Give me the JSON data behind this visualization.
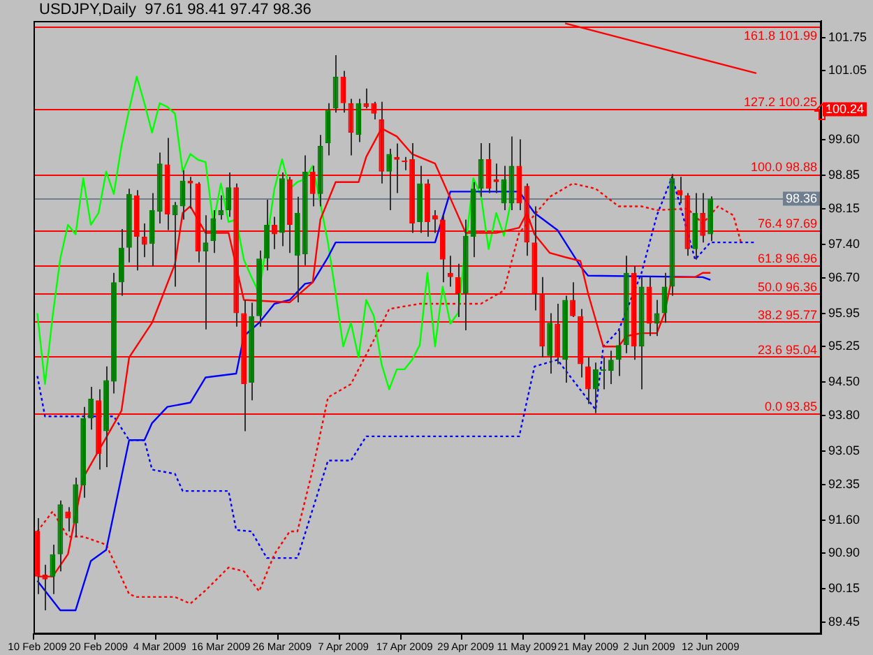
{
  "chart_data": {
    "type": "candlestick",
    "title": "USDJPY,Daily  97.61 98.41 97.47 98.36",
    "categories": [
      "10 Feb 2009",
      null,
      null,
      null,
      null,
      null,
      null,
      null,
      "20 Feb 2009",
      null,
      null,
      null,
      null,
      null,
      null,
      null,
      "4 Mar 2009",
      null,
      null,
      null,
      null,
      null,
      null,
      null,
      "16 Mar 2009",
      null,
      null,
      null,
      null,
      null,
      null,
      null,
      "26 Mar 2009",
      null,
      null,
      null,
      null,
      null,
      null,
      null,
      "7 Apr 2009",
      null,
      null,
      null,
      null,
      null,
      null,
      null,
      "17 Apr 2009",
      null,
      null,
      null,
      null,
      null,
      null,
      null,
      "29 Apr 2009",
      null,
      null,
      null,
      null,
      null,
      null,
      null,
      "11 May 2009",
      null,
      null,
      null,
      null,
      null,
      null,
      null,
      "21 May 2009",
      null,
      null,
      null,
      null,
      null,
      null,
      null,
      "2 Jun 2009",
      null,
      null,
      null,
      null,
      null,
      null,
      null,
      "12 Jun 2009",
      null,
      null,
      null,
      null,
      null,
      null,
      null,
      null,
      null,
      null,
      null,
      null,
      null,
      null
    ],
    "ohlc": [
      [
        91.37,
        91.64,
        90.04,
        90.41
      ],
      [
        90.45,
        90.66,
        89.7,
        90.35
      ],
      [
        90.41,
        91.08,
        90.04,
        90.88
      ],
      [
        90.88,
        92.01,
        90.52,
        91.93
      ],
      [
        91.78,
        91.87,
        91.36,
        91.63
      ],
      [
        91.53,
        92.49,
        91.25,
        92.35
      ],
      [
        92.33,
        93.98,
        92.07,
        93.74
      ],
      [
        93.74,
        94.4,
        93.5,
        94.15
      ],
      [
        94.12,
        94.35,
        92.66,
        92.99
      ],
      [
        93.47,
        94.83,
        92.71,
        94.54
      ],
      [
        94.51,
        96.8,
        94.26,
        96.6
      ],
      [
        96.6,
        97.72,
        96.32,
        97.33
      ],
      [
        97.33,
        98.57,
        97.02,
        98.46
      ],
      [
        98.43,
        98.54,
        96.85,
        97.56
      ],
      [
        97.56,
        97.84,
        97.13,
        97.39
      ],
      [
        97.41,
        98.48,
        96.94,
        98.12
      ],
      [
        98.09,
        99.33,
        97.84,
        99.1
      ],
      [
        99.08,
        99.64,
        97.7,
        98.03
      ],
      [
        98.01,
        98.29,
        96.51,
        98.23
      ],
      [
        98.2,
        98.96,
        97.92,
        98.74
      ],
      [
        98.74,
        98.82,
        98.15,
        98.68
      ],
      [
        98.68,
        98.71,
        97.02,
        97.25
      ],
      [
        97.25,
        98.01,
        95.61,
        97.44
      ],
      [
        97.47,
        98.12,
        97.22,
        97.95
      ],
      [
        98.01,
        98.43,
        97.92,
        98.12
      ],
      [
        98.12,
        98.91,
        97.98,
        98.6
      ],
      [
        98.6,
        98.68,
        95.67,
        95.95
      ],
      [
        95.95,
        96.23,
        93.47,
        94.46
      ],
      [
        94.49,
        96.17,
        94.12,
        95.89
      ],
      [
        95.89,
        97.27,
        95.67,
        97.1
      ],
      [
        97.1,
        98.34,
        96.85,
        97.81
      ],
      [
        97.81,
        97.98,
        97.3,
        97.61
      ],
      [
        97.64,
        98.91,
        97.36,
        98.79
      ],
      [
        98.77,
        98.82,
        97.22,
        97.81
      ],
      [
        97.16,
        98.4,
        96.18,
        98.06
      ],
      [
        97.19,
        99.27,
        96.96,
        98.93
      ],
      [
        98.93,
        99.05,
        98.2,
        98.46
      ],
      [
        98.46,
        99.7,
        98.2,
        99.47
      ],
      [
        99.53,
        100.37,
        99.27,
        100.23
      ],
      [
        100.26,
        101.38,
        100.17,
        100.93
      ],
      [
        100.93,
        101.05,
        100.17,
        100.37
      ],
      [
        100.37,
        100.46,
        99.27,
        99.75
      ],
      [
        99.7,
        100.46,
        99.55,
        100.37
      ],
      [
        100.37,
        100.68,
        100.26,
        100.29
      ],
      [
        100.37,
        100.4,
        100.03,
        100.15
      ],
      [
        100.03,
        100.4,
        98.68,
        98.93
      ],
      [
        98.93,
        99.41,
        98.12,
        99.3
      ],
      [
        99.24,
        99.52,
        98.48,
        99.18
      ],
      [
        99.16,
        99.24,
        98.96,
        99.13
      ],
      [
        99.19,
        99.53,
        97.64,
        97.84
      ],
      [
        97.87,
        99.05,
        97.64,
        98.68
      ],
      [
        98.68,
        98.77,
        97.56,
        97.87
      ],
      [
        98.01,
        98.12,
        97.64,
        97.92
      ],
      [
        97.92,
        98.01,
        96.6,
        97.08
      ],
      [
        96.8,
        97.16,
        96.51,
        96.71
      ],
      [
        96.71,
        96.99,
        95.87,
        96.37
      ],
      [
        96.37,
        97.92,
        95.59,
        97.58
      ],
      [
        97.56,
        98.71,
        97.13,
        98.57
      ],
      [
        98.57,
        99.53,
        98.4,
        99.19
      ],
      [
        99.19,
        99.53,
        98.48,
        98.57
      ],
      [
        98.77,
        99.1,
        98.48,
        98.71
      ],
      [
        98.26,
        99.05,
        98.12,
        98.77
      ],
      [
        98.26,
        99.67,
        98.12,
        99.05
      ],
      [
        99.05,
        99.61,
        98.12,
        98.26
      ],
      [
        98.63,
        98.68,
        97.16,
        97.44
      ],
      [
        97.44,
        98.2,
        96.01,
        96.37
      ],
      [
        96.37,
        96.71,
        95.02,
        95.25
      ],
      [
        95.05,
        95.95,
        94.68,
        95.75
      ],
      [
        95.73,
        96.15,
        94.88,
        95.02
      ],
      [
        94.97,
        96.32,
        94.49,
        96.23
      ],
      [
        96.23,
        96.6,
        95.87,
        95.89
      ],
      [
        95.89,
        96.04,
        94.6,
        94.88
      ],
      [
        94.83,
        95.02,
        94.04,
        94.35
      ],
      [
        94.35,
        94.91,
        93.85,
        94.77
      ],
      [
        94.74,
        95.02,
        94.35,
        94.77
      ],
      [
        94.74,
        95.16,
        94.46,
        94.97
      ],
      [
        94.97,
        95.59,
        94.63,
        95.28
      ],
      [
        95.28,
        97.16,
        95.11,
        96.8
      ],
      [
        96.8,
        96.94,
        94.97,
        95.25
      ],
      [
        95.25,
        96.71,
        94.35,
        96.51
      ],
      [
        96.51,
        96.71,
        95.47,
        95.73
      ],
      [
        95.73,
        96.23,
        95.47,
        95.95
      ],
      [
        95.95,
        96.8,
        95.75,
        96.51
      ],
      [
        96.51,
        98.88,
        96.32,
        98.79
      ],
      [
        98.54,
        98.82,
        98.26,
        98.43
      ],
      [
        98.43,
        98.48,
        97.16,
        97.3
      ],
      [
        97.3,
        98.48,
        97.08,
        98.06
      ],
      [
        98.06,
        98.48,
        97.44,
        97.58
      ],
      [
        97.61,
        98.41,
        97.47,
        98.36
      ],
      null,
      null,
      null,
      null,
      null,
      null,
      null,
      null,
      null,
      null,
      null,
      null,
      null,
      null
    ],
    "colors": [
      "#ff0000",
      "#ff0000",
      "#008000",
      "#008000",
      "#ff0000",
      "#008000",
      "#008000",
      "#008000",
      "#ff0000",
      "#008000",
      "#008000",
      "#008000",
      "#008000",
      "#ff0000",
      "#ff0000",
      "#008000",
      "#008000",
      "#ff0000",
      "#008000",
      "#008000",
      "#ff0000",
      "#ff0000",
      "#008000",
      "#008000",
      "#008000",
      "#008000",
      "#ff0000",
      "#ff0000",
      "#008000",
      "#008000",
      "#008000",
      "#ff0000",
      "#008000",
      "#ff0000",
      "#008000",
      "#008000",
      "#ff0000",
      "#008000",
      "#008000",
      "#008000",
      "#ff0000",
      "#ff0000",
      "#008000",
      "#ff0000",
      "#ff0000",
      "#ff0000",
      "#008000",
      "#ff0000",
      "#ff0000",
      "#ff0000",
      "#008000",
      "#ff0000",
      "#ff0000",
      "#ff0000",
      "#ff0000",
      "#ff0000",
      "#008000",
      "#008000",
      "#008000",
      "#ff0000",
      "#ff0000",
      "#008000",
      "#008000",
      "#ff0000",
      "#ff0000",
      "#ff0000",
      "#ff0000",
      "#008000",
      "#ff0000",
      "#008000",
      "#ff0000",
      "#ff0000",
      "#ff0000",
      "#008000",
      "#008000",
      "#008000",
      "#008000",
      "#008000",
      "#ff0000",
      "#008000",
      "#ff0000",
      "#008000",
      "#008000",
      "#008000",
      "#ff0000",
      "#ff0000",
      "#008000",
      "#ff0000",
      "#008000",
      null,
      null,
      null,
      null,
      null,
      null,
      null,
      null,
      null,
      null,
      null,
      null,
      null,
      null
    ],
    "series": [
      {
        "type": "line",
        "color": "#ff0000",
        "line_style": "solid",
        "values": [
          90.41,
          null,
          90.41,
          null,
          90.88,
          null,
          92.49,
          null,
          null,
          null,
          null,
          93.9,
          95.02,
          null,
          null,
          95.75,
          null,
          null,
          96.99,
          98.06,
          98.2,
          null,
          97.64,
          null,
          null,
          97.64,
          null,
          96.23,
          null,
          null,
          null,
          null,
          null,
          96.18,
          null,
          null,
          96.6,
          97.92,
          null,
          98.71,
          null,
          null,
          98.71,
          99.24,
          null,
          99.84,
          null,
          99.67,
          null,
          99.3,
          null,
          null,
          99.1,
          null,
          98.37,
          null,
          97.64,
          null,
          null,
          null,
          97.64,
          null,
          null,
          97.75,
          98.06,
          97.61,
          null,
          97.22,
          null,
          97.13,
          null,
          97.05,
          96.37,
          null,
          95.25,
          null,
          95.25,
          95.47,
          null,
          95.53,
          null,
          95.53,
          95.95,
          96.71,
          null,
          null,
          96.71,
          96.8,
          96.8,
          null,
          null,
          null,
          null,
          null,
          null,
          null,
          null,
          null,
          null,
          null,
          null,
          null,
          null
        ]
      },
      {
        "type": "line",
        "color": "#0000ff",
        "line_style": "solid",
        "values": [
          90.32,
          null,
          null,
          89.7,
          null,
          89.7,
          null,
          90.74,
          null,
          90.97,
          null,
          null,
          93.28,
          null,
          93.28,
          93.64,
          null,
          93.98,
          null,
          null,
          94.07,
          null,
          94.6,
          null,
          null,
          null,
          94.68,
          95.47,
          null,
          95.75,
          null,
          96.15,
          null,
          96.23,
          null,
          96.57,
          96.6,
          null,
          97.13,
          97.44,
          null,
          null,
          null,
          null,
          null,
          null,
          null,
          null,
          null,
          null,
          null,
          null,
          97.44,
          null,
          98.51,
          null,
          null,
          null,
          null,
          null,
          null,
          null,
          null,
          98.51,
          null,
          98.06,
          null,
          null,
          97.7,
          null,
          null,
          96.94,
          96.74,
          null,
          null,
          null,
          null,
          null,
          null,
          null,
          null,
          null,
          null,
          null,
          null,
          null,
          null,
          96.71,
          96.65,
          null,
          null,
          null,
          null,
          null,
          null,
          null,
          null,
          null,
          null,
          null,
          null,
          null,
          null
        ]
      },
      {
        "type": "line",
        "color": "#00ff00",
        "line_style": "solid",
        "values": [
          95.95,
          94.46,
          95.89,
          97.1,
          97.81,
          97.61,
          98.79,
          97.81,
          98.06,
          98.93,
          98.46,
          99.47,
          100.23,
          100.93,
          100.37,
          99.75,
          100.37,
          100.29,
          100.15,
          98.93,
          99.3,
          99.18,
          99.13,
          97.84,
          98.68,
          97.87,
          97.92,
          97.08,
          96.71,
          96.37,
          null,
          98.57,
          99.19,
          98.57,
          98.71,
          98.77,
          99.05,
          98.26,
          97.44,
          96.37,
          95.25,
          95.75,
          95.02,
          96.23,
          95.89,
          94.88,
          94.35,
          94.77,
          94.77,
          94.97,
          95.28,
          96.8,
          95.25,
          96.51,
          95.73,
          95.95,
          null,
          98.79,
          98.43,
          97.3,
          98.06,
          97.58,
          98.36,
          null,
          null,
          null,
          null,
          null,
          null,
          null,
          null,
          null,
          null,
          null,
          null,
          null,
          null,
          null,
          null,
          null,
          null,
          null,
          null,
          null,
          null,
          null,
          null,
          null,
          null,
          null,
          null,
          null,
          null,
          null,
          null,
          null,
          null,
          null,
          null,
          null,
          null,
          null,
          null
        ]
      },
      {
        "type": "line",
        "color": "#ff0000",
        "line_style": "dotted",
        "values": [
          91.36,
          null,
          91.78,
          null,
          91.25,
          null,
          91.25,
          null,
          null,
          91.08,
          null,
          null,
          90.04,
          89.98,
          null,
          null,
          null,
          null,
          89.98,
          null,
          89.84,
          null,
          90.12,
          null,
          null,
          90.6,
          null,
          90.52,
          null,
          90.1,
          null,
          90.88,
          null,
          91.36,
          91.36,
          null,
          92.66,
          null,
          94.18,
          null,
          null,
          94.46,
          null,
          null,
          95.39,
          null,
          96.04,
          null,
          null,
          null,
          96.15,
          null,
          null,
          null,
          null,
          null,
          null,
          null,
          96.15,
          null,
          null,
          96.43,
          null,
          97.64,
          null,
          null,
          null,
          98.4,
          null,
          null,
          98.68,
          null,
          null,
          98.57,
          null,
          null,
          98.2,
          null,
          null,
          98.2,
          null,
          98.12,
          null,
          null,
          null,
          98.15,
          null,
          97.84,
          null,
          98.2,
          null,
          98.01,
          97.44,
          null,
          null,
          null,
          null,
          null,
          null,
          null,
          null,
          null,
          null
        ]
      },
      {
        "type": "line",
        "color": "#0000ff",
        "line_style": "dotted",
        "values": [
          94.63,
          93.78,
          null,
          null,
          null,
          null,
          null,
          null,
          null,
          null,
          93.78,
          null,
          93.28,
          null,
          93.28,
          92.66,
          null,
          null,
          92.57,
          92.21,
          null,
          null,
          null,
          null,
          null,
          92.21,
          91.39,
          null,
          91.36,
          null,
          90.8,
          null,
          null,
          null,
          90.8,
          null,
          null,
          null,
          92.85,
          null,
          null,
          92.85,
          null,
          93.36,
          null,
          null,
          null,
          null,
          null,
          null,
          null,
          null,
          null,
          null,
          null,
          null,
          null,
          null,
          null,
          null,
          null,
          null,
          null,
          93.36,
          null,
          94.83,
          null,
          null,
          94.97,
          null,
          null,
          null,
          null,
          93.92,
          95.25,
          null,
          95.59,
          null,
          null,
          96.8,
          null,
          98.01,
          null,
          98.82,
          null,
          null,
          97.08,
          null,
          97.44,
          null,
          null,
          null,
          null,
          null,
          97.44,
          null,
          null,
          null,
          null,
          null,
          null,
          null,
          null
        ]
      },
      {
        "type": "line",
        "color": "#ff0000",
        "line_style": "solid",
        "values": [
          null,
          null,
          null,
          null,
          null,
          null,
          null,
          null,
          null,
          null,
          null,
          null,
          null,
          null,
          null,
          null,
          null,
          null,
          null,
          null,
          null,
          null,
          null,
          null,
          null,
          null,
          null,
          null,
          null,
          null,
          null,
          null,
          null,
          null,
          null,
          null,
          null,
          null,
          null,
          null,
          null,
          null,
          null,
          null,
          null,
          null,
          null,
          null,
          null,
          null,
          null,
          null,
          null,
          null,
          null,
          null,
          null,
          null,
          null,
          null,
          null,
          null,
          null,
          null,
          null,
          null,
          null,
          null,
          null,
          102.05,
          null,
          null,
          null,
          null,
          null,
          null,
          null,
          null,
          null,
          null,
          null,
          null,
          null,
          null,
          null,
          null,
          null,
          null,
          null,
          null,
          null,
          null,
          null,
          null,
          101.0,
          null,
          null,
          null,
          null,
          null,
          null,
          null,
          null
        ]
      }
    ],
    "ylim": [
      89.2,
      102.1
    ],
    "yticks": [
      101.75,
      101.05,
      {
        "value": 99.6,
        "label": "99.60"
      },
      98.85,
      98.15,
      {
        "value": 97.4,
        "label": "97.40"
      },
      {
        "value": 96.7,
        "label": "96.70"
      },
      95.95,
      95.25,
      {
        "value": 94.5,
        "label": "94.50"
      },
      {
        "value": 93.8,
        "label": "93.80"
      },
      93.05,
      92.35,
      {
        "value": 91.6,
        "label": "91.60"
      },
      {
        "value": 90.9,
        "label": "90.90"
      },
      90.15,
      89.45
    ],
    "ref_lines": [
      {
        "axis": "y",
        "value": 100.24,
        "label": "100.24",
        "color": "#ff0000"
      },
      {
        "axis": "y",
        "value": 98.36,
        "label": "98.36",
        "color": "#6f7f90"
      },
      {
        "axis": "y",
        "value": 101.99,
        "color": "#ff0000"
      },
      {
        "axis": "y",
        "value": 98.88,
        "color": "#ff0000"
      },
      {
        "axis": "y",
        "value": 97.69,
        "color": "#ff0000"
      },
      {
        "axis": "y",
        "value": 96.96,
        "color": "#ff0000"
      },
      {
        "axis": "y",
        "value": 96.36,
        "color": "#ff0000"
      },
      {
        "axis": "y",
        "value": 95.77,
        "color": "#ff0000"
      },
      {
        "axis": "y",
        "value": 95.04,
        "color": "#ff0000"
      },
      {
        "axis": "y",
        "value": 93.85,
        "color": "#ff0000"
      }
    ],
    "annotations": [
      {
        "text": "161.8 101.99",
        "y": 101.99
      },
      {
        "text": "127.2 100.25",
        "y": 100.25
      },
      {
        "text": "100.0 98.88",
        "y": 98.88
      },
      {
        "text": "76.4 97.69",
        "y": 97.69
      },
      {
        "text": "61.8 96.96",
        "y": 96.96
      },
      {
        "text": "50.0 96.36",
        "y": 96.36
      },
      {
        "text": "38.2 95.77",
        "y": 95.77
      },
      {
        "text": "23.6 95.04",
        "y": 95.04
      },
      {
        "text": "0.0 93.85",
        "y": 93.85
      }
    ],
    "grid": false,
    "legend": false
  }
}
